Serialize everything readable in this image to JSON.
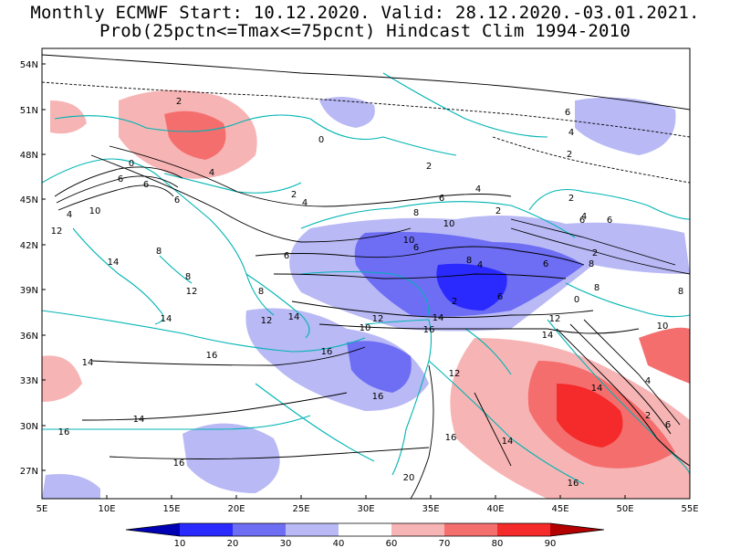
{
  "title_line1": "Monthly ECMWF Start: 10.12.2020. Valid: 28.12.2020.-03.01.2021.",
  "title_line2": "Prob(25pctn<=Tmax<=75pcnt) Hindcast Clim 1994-2010",
  "lat_labels": [
    "54N",
    "51N",
    "48N",
    "45N",
    "42N",
    "39N",
    "36N",
    "33N",
    "30N",
    "27N"
  ],
  "lon_labels": [
    "5E",
    "10E",
    "15E",
    "20E",
    "25E",
    "30E",
    "35E",
    "40E",
    "45E",
    "50E",
    "55E"
  ],
  "colorbar": {
    "ticks": [
      "10",
      "20",
      "30",
      "40",
      "60",
      "70",
      "80",
      "90"
    ],
    "colors": [
      "#0000b4",
      "#2a2aff",
      "#6e6ef5",
      "#b9b9f5",
      "#ffffff",
      "#f7b4b4",
      "#f56e6e",
      "#f52a2a",
      "#b40000"
    ]
  },
  "contour_labels": [
    {
      "t": "2"
    },
    {
      "t": "0"
    },
    {
      "t": "4"
    },
    {
      "t": "6"
    },
    {
      "t": "6"
    },
    {
      "t": "4"
    },
    {
      "t": "10"
    },
    {
      "t": "8"
    },
    {
      "t": "12"
    },
    {
      "t": "14"
    },
    {
      "t": "0"
    },
    {
      "t": "2"
    },
    {
      "t": "4"
    },
    {
      "t": "6"
    },
    {
      "t": "6"
    },
    {
      "t": "2"
    },
    {
      "t": "4"
    },
    {
      "t": "6"
    },
    {
      "t": "8"
    },
    {
      "t": "10"
    },
    {
      "t": "10"
    },
    {
      "t": "6"
    },
    {
      "t": "8"
    },
    {
      "t": "4"
    },
    {
      "t": "2"
    },
    {
      "t": "6"
    },
    {
      "t": "2"
    },
    {
      "t": "2"
    },
    {
      "t": "8"
    },
    {
      "t": "8"
    },
    {
      "t": "0"
    },
    {
      "t": "6"
    },
    {
      "t": "6"
    },
    {
      "t": "2"
    },
    {
      "t": "4"
    },
    {
      "t": "2"
    },
    {
      "t": "4"
    },
    {
      "t": "6"
    },
    {
      "t": "8"
    },
    {
      "t": "10"
    },
    {
      "t": "12"
    },
    {
      "t": "14"
    },
    {
      "t": "16"
    },
    {
      "t": "12"
    },
    {
      "t": "14"
    },
    {
      "t": "16"
    },
    {
      "t": "8"
    },
    {
      "t": "12"
    },
    {
      "t": "14"
    },
    {
      "t": "12"
    },
    {
      "t": "16"
    },
    {
      "t": "14"
    },
    {
      "t": "16"
    },
    {
      "t": "16"
    },
    {
      "t": "14"
    },
    {
      "t": "14"
    },
    {
      "t": "16"
    },
    {
      "t": "16"
    },
    {
      "t": "20"
    },
    {
      "t": "14"
    },
    {
      "t": "16"
    },
    {
      "t": "14"
    },
    {
      "t": "2"
    },
    {
      "t": "6"
    },
    {
      "t": "4"
    },
    {
      "t": "8"
    },
    {
      "t": "10"
    },
    {
      "t": "12"
    },
    {
      "t": "6"
    }
  ]
}
